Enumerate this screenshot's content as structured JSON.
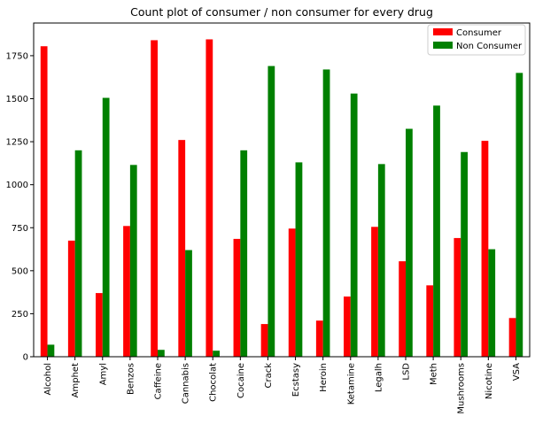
{
  "chart_data": {
    "type": "bar",
    "title": "Count plot of consumer / non consumer for every drug",
    "xlabel": "",
    "ylabel": "",
    "ylim": [
      0,
      1940
    ],
    "yticks": [
      0,
      250,
      500,
      750,
      1000,
      1250,
      1500,
      1750
    ],
    "categories": [
      "Alcohol",
      "Amphet",
      "Amyl",
      "Benzos",
      "Caffeine",
      "Cannabis",
      "Chocolat",
      "Cocaine",
      "Crack",
      "Ecstasy",
      "Heroin",
      "Ketamine",
      "Legalh",
      "LSD",
      "Meth",
      "Mushrooms",
      "Nicotine",
      "VSA"
    ],
    "series": [
      {
        "name": "Consumer",
        "color": "#ff0000",
        "values": [
          1805,
          675,
          370,
          760,
          1840,
          1260,
          1845,
          685,
          190,
          745,
          210,
          350,
          755,
          555,
          415,
          690,
          1255,
          225
        ]
      },
      {
        "name": "Non Consumer",
        "color": "#008000",
        "values": [
          70,
          1200,
          1505,
          1115,
          40,
          620,
          35,
          1200,
          1690,
          1130,
          1670,
          1530,
          1120,
          1325,
          1460,
          1190,
          625,
          1650
        ]
      }
    ],
    "grid": false,
    "legend_position": "top-right"
  }
}
